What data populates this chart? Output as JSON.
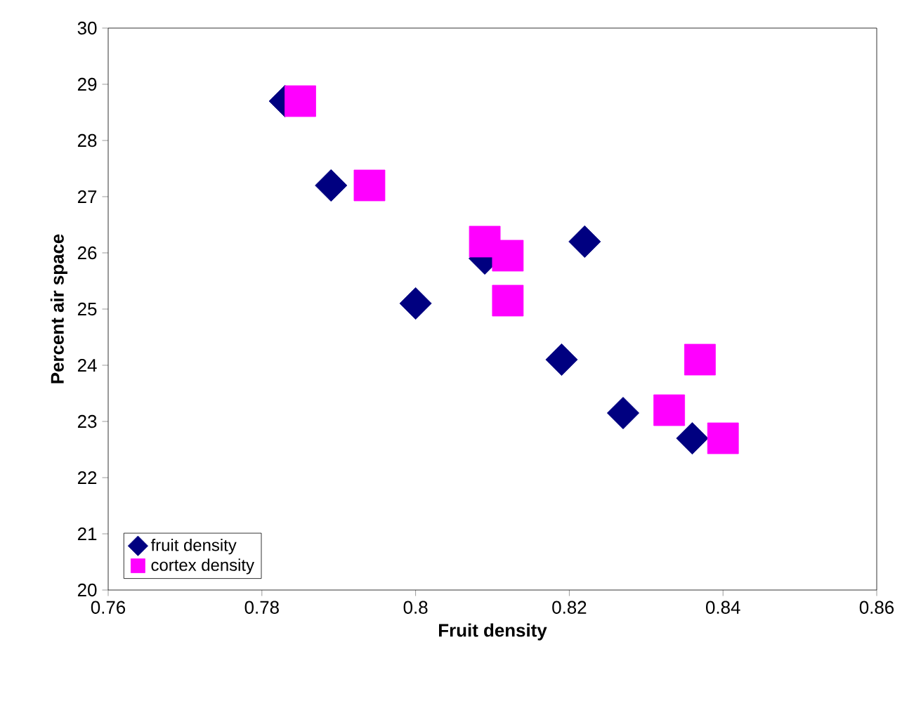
{
  "chart_data": {
    "type": "scatter",
    "xlabel": "Fruit density",
    "ylabel": "Percent air space",
    "xlim": [
      0.76,
      0.86
    ],
    "ylim": [
      20,
      30
    ],
    "xticks": [
      {
        "value": 0.76,
        "label": "0.76"
      },
      {
        "value": 0.78,
        "label": "0.78"
      },
      {
        "value": 0.8,
        "label": "0.8"
      },
      {
        "value": 0.82,
        "label": "0.82"
      },
      {
        "value": 0.84,
        "label": "0.84"
      },
      {
        "value": 0.86,
        "label": "0.86"
      }
    ],
    "yticks": [
      20,
      21,
      22,
      23,
      24,
      25,
      26,
      27,
      28,
      29,
      30
    ],
    "grid": false,
    "legend": "bottom left",
    "series": [
      {
        "name": "fruit density",
        "color": "#000080",
        "marker": "diamond",
        "x": [
          0.783,
          0.789,
          0.8,
          0.809,
          0.822,
          0.819,
          0.827,
          0.836
        ],
        "values": [
          28.7,
          27.2,
          25.1,
          25.9,
          26.2,
          24.1,
          23.15,
          22.7
        ]
      },
      {
        "name": "cortex density",
        "color": "#ff00ff",
        "marker": "square",
        "x": [
          0.785,
          0.794,
          0.809,
          0.812,
          0.812,
          0.837,
          0.833,
          0.84
        ],
        "values": [
          28.7,
          27.2,
          26.2,
          25.95,
          25.15,
          24.1,
          23.2,
          22.7
        ]
      }
    ]
  }
}
